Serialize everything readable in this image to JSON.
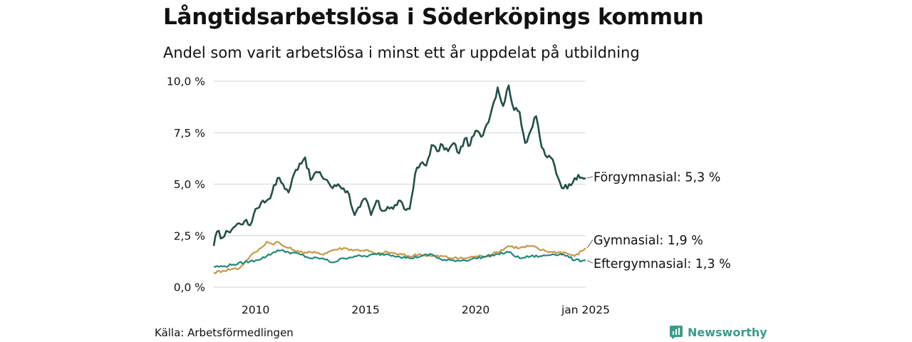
{
  "title": "Långtidsarbetslösa i Söderköpings kommun",
  "subtitle": "Andel som varit arbetslösa i minst ett år uppdelat på utbildning",
  "source": "Källa: Arbetsförmedlingen",
  "brand": {
    "name": "Newsworthy",
    "icon": "newsworthy-logo-icon",
    "color": "#3a9c8c"
  },
  "chart_data": {
    "type": "line",
    "title": "Långtidsarbetslösa i Söderköpings kommun",
    "subtitle": "Andel som varit arbetslösa i minst ett år uppdelat på utbildning",
    "xlabel": "",
    "ylabel": "",
    "xlim": [
      2008.1,
      2025.0
    ],
    "ylim": [
      0,
      10
    ],
    "grid": true,
    "y_ticks": [
      {
        "value": 0,
        "label": "0,0 %"
      },
      {
        "value": 2.5,
        "label": "2,5 %"
      },
      {
        "value": 5,
        "label": "5,0 %"
      },
      {
        "value": 7.5,
        "label": "7,5 %"
      },
      {
        "value": 10,
        "label": "10,0 %"
      }
    ],
    "x_ticks": [
      {
        "value": 2010,
        "label": "2010"
      },
      {
        "value": 2015,
        "label": "2015"
      },
      {
        "value": 2020,
        "label": "2020"
      },
      {
        "value": 2025,
        "label": "jan 2025"
      }
    ],
    "series": [
      {
        "name": "Förgymnasial",
        "end_label": "Förgymnasial: 5,3 %",
        "color": "#234f48",
        "x": [
          2008.1,
          2008.25,
          2008.5,
          2008.75,
          2009.0,
          2009.25,
          2009.5,
          2009.75,
          2010.0,
          2010.25,
          2010.5,
          2010.75,
          2011.0,
          2011.25,
          2011.5,
          2011.75,
          2012.0,
          2012.25,
          2012.5,
          2012.75,
          2013.0,
          2013.25,
          2013.5,
          2013.75,
          2014.0,
          2014.25,
          2014.5,
          2014.75,
          2015.0,
          2015.25,
          2015.5,
          2015.75,
          2016.0,
          2016.25,
          2016.5,
          2016.75,
          2017.0,
          2017.25,
          2017.5,
          2017.75,
          2018.0,
          2018.25,
          2018.5,
          2018.75,
          2019.0,
          2019.25,
          2019.5,
          2019.75,
          2020.0,
          2020.25,
          2020.5,
          2020.75,
          2021.0,
          2021.25,
          2021.5,
          2021.75,
          2022.0,
          2022.25,
          2022.5,
          2022.75,
          2023.0,
          2023.25,
          2023.5,
          2023.75,
          2024.0,
          2024.25,
          2024.5,
          2024.75,
          2025.0
        ],
        "values": [
          2.0,
          2.7,
          2.4,
          2.7,
          2.9,
          3.1,
          3.2,
          3.0,
          3.8,
          4.1,
          4.2,
          4.6,
          5.3,
          5.0,
          4.6,
          5.5,
          6.0,
          6.3,
          5.2,
          5.6,
          5.4,
          5.2,
          4.8,
          5.0,
          4.8,
          4.5,
          3.5,
          3.9,
          4.3,
          3.5,
          4.2,
          3.7,
          3.9,
          3.8,
          4.2,
          3.8,
          3.8,
          5.5,
          6.0,
          5.9,
          6.9,
          6.6,
          6.9,
          6.6,
          7.0,
          6.5,
          7.2,
          6.9,
          7.6,
          7.3,
          7.9,
          8.7,
          9.7,
          8.8,
          9.8,
          8.6,
          8.5,
          7.0,
          7.6,
          8.3,
          6.8,
          6.3,
          6.2,
          5.3,
          4.8,
          5.0,
          5.3,
          5.3,
          5.3
        ]
      },
      {
        "name": "Gymnasial",
        "end_label": "Gymnasial: 1,9 %",
        "color": "#c9984a",
        "x": [
          2008.1,
          2008.5,
          2009.0,
          2009.25,
          2009.5,
          2009.75,
          2010.0,
          2010.25,
          2010.5,
          2010.75,
          2011.0,
          2011.25,
          2011.5,
          2011.75,
          2012.0,
          2012.5,
          2013.0,
          2013.5,
          2014.0,
          2014.5,
          2015.0,
          2015.5,
          2016.0,
          2016.5,
          2017.0,
          2017.5,
          2018.0,
          2018.5,
          2019.0,
          2019.5,
          2020.0,
          2020.5,
          2021.0,
          2021.5,
          2022.0,
          2022.5,
          2023.0,
          2023.5,
          2024.0,
          2024.5,
          2025.0
        ],
        "values": [
          0.7,
          0.8,
          0.9,
          0.9,
          1.2,
          1.5,
          1.7,
          1.9,
          2.2,
          2.1,
          2.2,
          2.0,
          1.9,
          1.8,
          1.7,
          1.7,
          1.6,
          1.8,
          1.9,
          1.8,
          1.8,
          1.6,
          1.7,
          1.6,
          1.5,
          1.6,
          1.5,
          1.5,
          1.4,
          1.4,
          1.5,
          1.5,
          1.7,
          2.0,
          1.9,
          2.0,
          1.8,
          1.7,
          1.7,
          1.5,
          1.9
        ]
      },
      {
        "name": "Eftergymnasial",
        "end_label": "Eftergymnasial: 1,3 %",
        "color": "#1f8a7a",
        "x": [
          2008.1,
          2008.5,
          2009.0,
          2009.5,
          2010.0,
          2010.5,
          2011.0,
          2011.5,
          2012.0,
          2012.5,
          2013.0,
          2013.5,
          2014.0,
          2014.5,
          2015.0,
          2015.5,
          2016.0,
          2016.5,
          2017.0,
          2017.5,
          2018.0,
          2018.5,
          2019.0,
          2019.5,
          2020.0,
          2020.5,
          2021.0,
          2021.5,
          2022.0,
          2022.5,
          2023.0,
          2023.5,
          2024.0,
          2024.5,
          2025.0
        ],
        "values": [
          1.0,
          1.0,
          1.1,
          1.2,
          1.3,
          1.5,
          1.8,
          1.7,
          1.6,
          1.4,
          1.4,
          1.2,
          1.4,
          1.5,
          1.5,
          1.6,
          1.6,
          1.5,
          1.4,
          1.5,
          1.6,
          1.3,
          1.3,
          1.3,
          1.4,
          1.5,
          1.6,
          1.7,
          1.4,
          1.5,
          1.5,
          1.6,
          1.6,
          1.3,
          1.3
        ]
      }
    ]
  }
}
